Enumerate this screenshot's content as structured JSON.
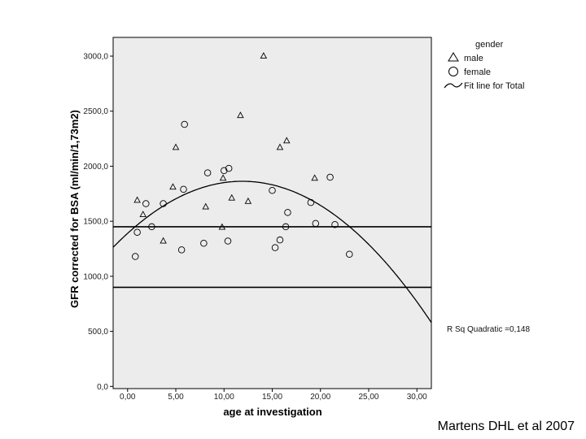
{
  "chart_data": {
    "type": "scatter",
    "xlabel": "age at investigation",
    "ylabel": "GFR corrected for BSA (ml/min/1,73m2)",
    "xlim": [
      -1.5,
      31.5
    ],
    "ylim": [
      -20,
      3170
    ],
    "x_ticks": [
      {
        "value": 0,
        "label": "0,00"
      },
      {
        "value": 5,
        "label": "5,00"
      },
      {
        "value": 10,
        "label": "10,00"
      },
      {
        "value": 15,
        "label": "15,00"
      },
      {
        "value": 20,
        "label": "20,00"
      },
      {
        "value": 25,
        "label": "25,00"
      },
      {
        "value": 30,
        "label": "30,00"
      }
    ],
    "y_ticks": [
      {
        "value": 0,
        "label": "0,0"
      },
      {
        "value": 500,
        "label": "500,0"
      },
      {
        "value": 1000,
        "label": "1000,0"
      },
      {
        "value": 1500,
        "label": "1500,0"
      },
      {
        "value": 2000,
        "label": "2000,0"
      },
      {
        "value": 2500,
        "label": "2500,0"
      },
      {
        "value": 3000,
        "label": "3000,0"
      }
    ],
    "grid": false,
    "legend_position": "top-right",
    "legend": {
      "title": "gender",
      "entries": [
        {
          "label": "male",
          "marker": "triangle"
        },
        {
          "label": "female",
          "marker": "circle"
        },
        {
          "label": "Fit line for Total",
          "marker": "curve"
        }
      ]
    },
    "series": [
      {
        "name": "male",
        "marker": "triangle",
        "points": [
          {
            "x": 1.0,
            "y": 1690
          },
          {
            "x": 1.6,
            "y": 1560
          },
          {
            "x": 3.7,
            "y": 1320
          },
          {
            "x": 4.7,
            "y": 1810
          },
          {
            "x": 5.0,
            "y": 2170
          },
          {
            "x": 8.1,
            "y": 1630
          },
          {
            "x": 9.8,
            "y": 1445
          },
          {
            "x": 9.9,
            "y": 1890
          },
          {
            "x": 10.8,
            "y": 1710
          },
          {
            "x": 11.7,
            "y": 2460
          },
          {
            "x": 12.5,
            "y": 1680
          },
          {
            "x": 14.1,
            "y": 3000
          },
          {
            "x": 15.8,
            "y": 2170
          },
          {
            "x": 16.5,
            "y": 2230
          },
          {
            "x": 19.4,
            "y": 1890
          }
        ]
      },
      {
        "name": "female",
        "marker": "circle",
        "points": [
          {
            "x": 0.8,
            "y": 1180
          },
          {
            "x": 1.0,
            "y": 1400
          },
          {
            "x": 1.9,
            "y": 1660
          },
          {
            "x": 2.5,
            "y": 1450
          },
          {
            "x": 3.7,
            "y": 1660
          },
          {
            "x": 5.6,
            "y": 1240
          },
          {
            "x": 5.8,
            "y": 1790
          },
          {
            "x": 5.9,
            "y": 2380
          },
          {
            "x": 7.9,
            "y": 1300
          },
          {
            "x": 8.3,
            "y": 1940
          },
          {
            "x": 10.0,
            "y": 1960
          },
          {
            "x": 10.4,
            "y": 1320
          },
          {
            "x": 10.5,
            "y": 1980
          },
          {
            "x": 15.0,
            "y": 1780
          },
          {
            "x": 15.3,
            "y": 1260
          },
          {
            "x": 15.8,
            "y": 1330
          },
          {
            "x": 16.4,
            "y": 1450
          },
          {
            "x": 16.6,
            "y": 1580
          },
          {
            "x": 19.0,
            "y": 1670
          },
          {
            "x": 19.5,
            "y": 1480
          },
          {
            "x": 21.0,
            "y": 1900
          },
          {
            "x": 21.5,
            "y": 1470
          },
          {
            "x": 23.0,
            "y": 1200
          }
        ]
      }
    ],
    "fit_line": {
      "name": "Fit line for Total",
      "type": "quadratic",
      "coefficients": {
        "a": -3.34,
        "b": 79.5,
        "c": 1390
      },
      "x_range": [
        -1.5,
        31.5
      ],
      "r_squared_label": "R Sq Quadratic =0,148"
    },
    "reference_lines": [
      {
        "y": 1450
      },
      {
        "y": 900
      }
    ]
  },
  "colors": {
    "plot_background": "#ececec",
    "plot_border": "#000000",
    "markers": "#000000"
  },
  "footer": {
    "credit": "Martens DHL et al 2007"
  }
}
